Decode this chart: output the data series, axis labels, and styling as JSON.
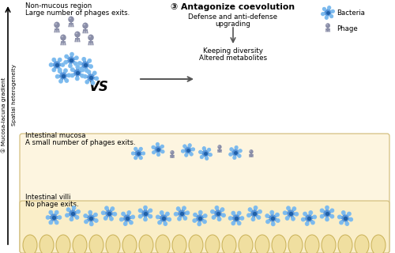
{
  "fig_width": 5.0,
  "fig_height": 3.2,
  "dpi": 100,
  "bg_color": "#ffffff",
  "beige_color": "#fdf5e0",
  "beige_villi": "#faeec8",
  "left_label_1": "① Mucosa-lacuna gradient",
  "left_label_2": "Spatial heterogeneity",
  "region1_text1": "Non-mucous region",
  "region1_text2": "Large number of phages exits.",
  "region2_text1": "Intestinal mucosa",
  "region2_text2": "A small number of phages exits.",
  "region3_text1": "Intestinal villi",
  "region3_text2": "No phage exits.",
  "vs_text": "VS",
  "title2": "③ Antagonize coevolution",
  "sub1": "Defense and anti-defense",
  "sub2": "upgrading",
  "sub3": "Keeping diversity",
  "sub4": "Altered metabolites",
  "legend_bacteria": "Bacteria",
  "legend_phage": "Phage",
  "phage_color": "#8a8ea8",
  "bact_c1": "#2060a8",
  "bact_c2": "#5090d8",
  "bact_c3": "#80bef0"
}
